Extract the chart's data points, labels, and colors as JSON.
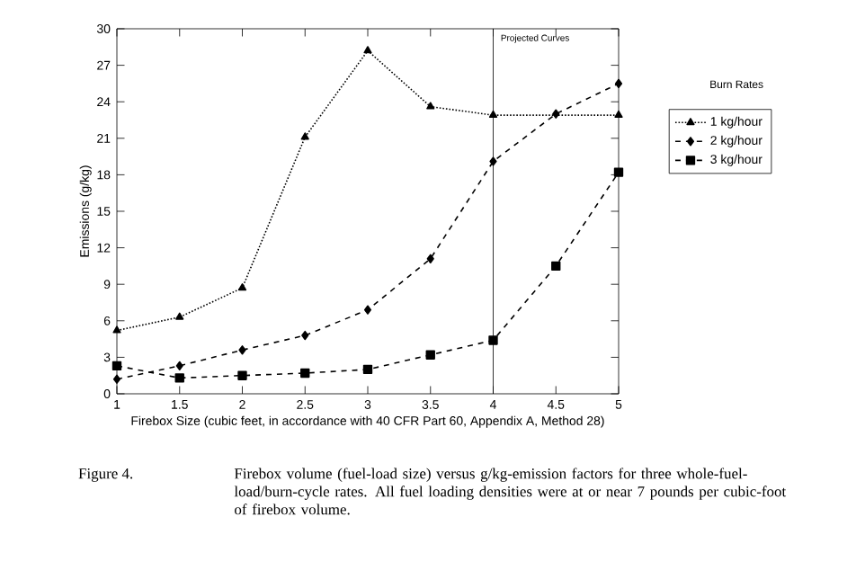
{
  "chart_data": {
    "type": "line",
    "xlabel": "Firebox Size (cubic feet, in accordance with 40 CFR Part 60, Appendix A, Method 28)",
    "ylabel": "Emissions (g/kg)",
    "legend_title": "Burn Rates",
    "x": [
      1,
      1.5,
      2,
      2.5,
      3,
      3.5,
      4,
      4.5,
      5
    ],
    "series": [
      {
        "name": "1 kg/hour",
        "color": "#000000",
        "marker": "triangle",
        "line_style": "dotted",
        "values": [
          5.2,
          6.3,
          8.7,
          21.1,
          28.2,
          23.6,
          22.9,
          null,
          22.9
        ]
      },
      {
        "name": "2 kg/hour",
        "color": "#000000",
        "marker": "diamond",
        "line_style": "dashed",
        "values": [
          1.2,
          2.3,
          3.6,
          4.8,
          6.9,
          11.1,
          19.1,
          23.0,
          25.5
        ]
      },
      {
        "name": "3 kg/hour",
        "color": "#000000",
        "marker": "square",
        "line_style": "dashed",
        "values": [
          2.3,
          1.3,
          1.5,
          1.7,
          2.0,
          3.2,
          4.4,
          10.5,
          18.2
        ]
      }
    ],
    "xlim": [
      1,
      5
    ],
    "ylim": [
      0,
      30
    ],
    "xticks": [
      1,
      1.5,
      2,
      2.5,
      3,
      3.5,
      4,
      4.5,
      5
    ],
    "yticks": [
      0,
      3,
      6,
      9,
      12,
      15,
      18,
      21,
      24,
      27,
      30
    ],
    "grid": false,
    "legend": "right",
    "ref_lines": [
      {
        "axis": "x",
        "value": 4,
        "label": "Projected Curves"
      }
    ],
    "annotations": [
      "Figure 4.",
      "Firebox volume (fuel-load size) versus g/kg-emission factors for three whole-fuel-load/burn-cycle rates.  All fuel loading densities were at or near 7 pounds per cubic-foot of firebox volume."
    ]
  }
}
